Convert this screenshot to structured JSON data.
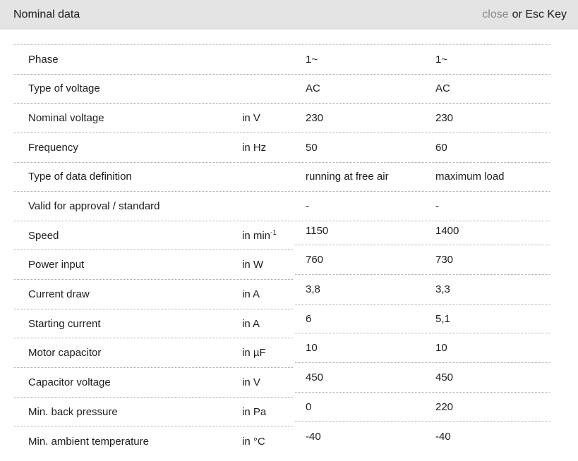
{
  "header": {
    "title": "Nominal data",
    "close_label": "close",
    "esc_hint": "or Esc Key"
  },
  "table": {
    "rows": [
      {
        "label": "Phase",
        "unit": "",
        "v1": "1~",
        "v2": "1~"
      },
      {
        "label": "Type of voltage",
        "unit": "",
        "v1": "AC",
        "v2": "AC"
      },
      {
        "label": "Nominal voltage",
        "unit": "in V",
        "v1": "230",
        "v2": "230"
      },
      {
        "label": "Frequency",
        "unit": "in Hz",
        "v1": "50",
        "v2": "60"
      },
      {
        "label": "Type of data definition",
        "unit": "",
        "v1": "running at free air",
        "v2": "maximum load"
      },
      {
        "label": "Valid for approval / standard",
        "unit": "",
        "v1": "-",
        "v2": "-"
      },
      {
        "label": "Speed",
        "unit": "in min",
        "unit_sup": "-1",
        "v1": "1150",
        "v2": "1400"
      },
      {
        "label": "Power input",
        "unit": "in W",
        "v1": "760",
        "v2": "730"
      },
      {
        "label": "Current draw",
        "unit": "in A",
        "v1": "3,8",
        "v2": "3,3"
      },
      {
        "label": "Starting current",
        "unit": "in A",
        "v1": "6",
        "v2": "5,1"
      },
      {
        "label": "Motor capacitor",
        "unit": "in µF",
        "v1": "10",
        "v2": "10"
      },
      {
        "label": "Capacitor voltage",
        "unit": "in V",
        "v1": "450",
        "v2": "450"
      },
      {
        "label": "Min. back pressure",
        "unit": "in Pa",
        "v1": "0",
        "v2": "220"
      },
      {
        "label": "Min. ambient temperature",
        "unit": "in °C",
        "v1": "-40",
        "v2": "-40"
      }
    ]
  },
  "colors": {
    "header_bg": "#e4e4e4",
    "border": "#a6a6a6",
    "text": "#1d1d1d",
    "muted": "#8a8a8a"
  }
}
